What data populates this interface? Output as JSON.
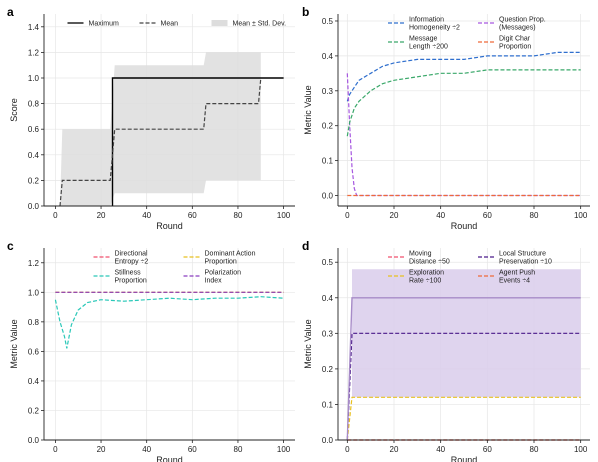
{
  "chart_data": [
    {
      "panel": "a",
      "type": "line",
      "xlabel": "Round",
      "ylabel": "Score",
      "xlim": [
        -5,
        105
      ],
      "ylim": [
        0,
        1.5
      ],
      "xticks": [
        0,
        20,
        40,
        60,
        80,
        100
      ],
      "yticks": [
        0.0,
        0.2,
        0.4,
        0.6,
        0.8,
        1.0,
        1.2,
        1.4
      ],
      "grid": true,
      "legend_position": "top",
      "legend_cols": 3,
      "series": [
        {
          "name": "Maximum",
          "style": "solid",
          "color": "#000000",
          "x": [
            25,
            25,
            100
          ],
          "y": [
            0,
            1.0,
            1.0
          ]
        },
        {
          "name": "Mean",
          "style": "dashed",
          "color": "#444444",
          "x": [
            2,
            3,
            24,
            25,
            26,
            65,
            66,
            89,
            90
          ],
          "y": [
            0,
            0.2,
            0.2,
            0.4,
            0.6,
            0.6,
            0.8,
            0.8,
            1.0
          ]
        },
        {
          "name": "Mean ± Std. Dev.",
          "style": "band",
          "color": "#dddddd",
          "x": [
            2,
            3,
            24,
            26,
            65,
            66,
            89,
            90
          ],
          "lower": [
            0,
            0,
            0,
            0.1,
            0.1,
            0.2,
            0.2,
            0.2
          ],
          "upper": [
            0,
            0.6,
            0.6,
            1.1,
            1.1,
            1.2,
            1.2,
            1.2
          ]
        }
      ]
    },
    {
      "panel": "b",
      "type": "line",
      "xlabel": "Round",
      "ylabel": "Metric Value",
      "xlim": [
        -4,
        104
      ],
      "ylim": [
        -0.03,
        0.52
      ],
      "xticks": [
        0,
        20,
        40,
        60,
        80,
        100
      ],
      "yticks": [
        0.0,
        0.1,
        0.2,
        0.3,
        0.4,
        0.5
      ],
      "grid": true,
      "legend_position": "top",
      "legend_cols": 2,
      "series": [
        {
          "name": "Information\nHomogeneity ÷2",
          "style": "dashed",
          "color": "#2f6fce",
          "x": [
            0,
            1,
            3,
            5,
            10,
            15,
            20,
            30,
            40,
            50,
            60,
            70,
            80,
            90,
            100
          ],
          "y": [
            0.27,
            0.29,
            0.31,
            0.33,
            0.35,
            0.37,
            0.38,
            0.39,
            0.39,
            0.39,
            0.4,
            0.4,
            0.4,
            0.41,
            0.41
          ]
        },
        {
          "name": "Question Prop.\n(Messages)",
          "style": "dashed",
          "color": "#a657e0",
          "x": [
            0,
            1,
            2,
            3,
            4,
            5,
            100
          ],
          "y": [
            0.35,
            0.2,
            0.08,
            0.02,
            0.0,
            0.0,
            0.0
          ]
        },
        {
          "name": "Message\nLength ÷200",
          "style": "dashed",
          "color": "#3aa86a",
          "x": [
            0,
            1,
            3,
            5,
            10,
            15,
            20,
            30,
            40,
            50,
            60,
            70,
            80,
            90,
            100
          ],
          "y": [
            0.17,
            0.21,
            0.25,
            0.27,
            0.3,
            0.32,
            0.33,
            0.34,
            0.35,
            0.35,
            0.36,
            0.36,
            0.36,
            0.36,
            0.36
          ]
        },
        {
          "name": "Digit Char\nProportion",
          "style": "dashed",
          "color": "#ef6a3a",
          "x": [
            0,
            100
          ],
          "y": [
            0.0,
            0.0
          ]
        }
      ]
    },
    {
      "panel": "c",
      "type": "line",
      "xlabel": "Round",
      "ylabel": "Metric Value",
      "xlim": [
        -5,
        105
      ],
      "ylim": [
        0,
        1.3
      ],
      "xticks": [
        0,
        20,
        40,
        60,
        80,
        100
      ],
      "yticks": [
        0.0,
        0.2,
        0.4,
        0.6,
        0.8,
        1.0,
        1.2
      ],
      "grid": true,
      "legend_position": "top",
      "legend_cols": 2,
      "series": [
        {
          "name": "Directional\nEntropy ÷2",
          "style": "dashed",
          "color": "#f0506e",
          "x": [
            0,
            100
          ],
          "y": [
            1.0,
            1.0
          ]
        },
        {
          "name": "Dominant Action\nProportion",
          "style": "dashed",
          "color": "#e8c020",
          "x": [
            0,
            100
          ],
          "y": [
            1.0,
            1.0
          ]
        },
        {
          "name": "Stillness\nProportion",
          "style": "dashed",
          "color": "#2ac8b8",
          "x": [
            0,
            2,
            4,
            5,
            7,
            10,
            14,
            20,
            30,
            40,
            50,
            60,
            70,
            80,
            90,
            100
          ],
          "y": [
            0.95,
            0.8,
            0.7,
            0.62,
            0.78,
            0.88,
            0.93,
            0.95,
            0.94,
            0.95,
            0.96,
            0.95,
            0.96,
            0.96,
            0.97,
            0.96
          ]
        },
        {
          "name": "Polarization\nIndex",
          "style": "dashed",
          "color": "#8b3fc0",
          "x": [
            0,
            100
          ],
          "y": [
            1.0,
            1.0
          ]
        }
      ]
    },
    {
      "panel": "d",
      "type": "line",
      "xlabel": "Round",
      "ylabel": "Metric Value",
      "xlim": [
        -4,
        104
      ],
      "ylim": [
        0,
        0.54
      ],
      "xticks": [
        0,
        20,
        40,
        60,
        80,
        100
      ],
      "yticks": [
        0.0,
        0.1,
        0.2,
        0.3,
        0.4,
        0.5
      ],
      "grid": true,
      "legend_position": "top",
      "legend_cols": 2,
      "series": [
        {
          "name": "Moving\nDistance ÷50",
          "style": "dashed",
          "color": "#f0506e",
          "x": [
            0,
            100
          ],
          "y": [
            0.0,
            0.0
          ]
        },
        {
          "name": "Local Structure\nPreservation ÷10",
          "style": "dashed",
          "color": "#4a1a8a",
          "x": [
            0,
            2,
            100
          ],
          "y": [
            0.0,
            0.3,
            0.3
          ]
        },
        {
          "name": "Exploration\nRate ÷100",
          "style": "dashed",
          "color": "#e8c020",
          "x": [
            0,
            2,
            100
          ],
          "y": [
            0.0,
            0.12,
            0.12
          ]
        },
        {
          "name": "Agent Push\nEvents ÷4",
          "style": "dashed",
          "color": "#ef6a3a",
          "x": [
            0,
            100
          ],
          "y": [
            0.0,
            0.0
          ]
        },
        {
          "name": "",
          "style": "solid",
          "color": "#a78bc8",
          "x": [
            0,
            2,
            100
          ],
          "y": [
            0.0,
            0.4,
            0.4
          ]
        },
        {
          "name": "",
          "style": "band",
          "color": "#d9cdeb",
          "x": [
            2,
            100
          ],
          "lower": [
            0.12,
            0.12
          ],
          "upper": [
            0.48,
            0.48
          ]
        }
      ]
    }
  ]
}
